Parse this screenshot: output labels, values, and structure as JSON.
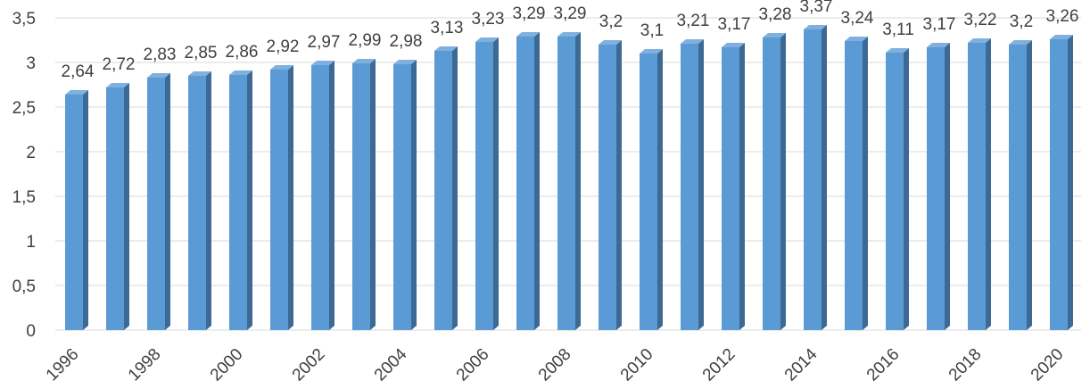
{
  "chart_data": {
    "type": "bar",
    "style": "3d-column",
    "title": "",
    "xlabel": "",
    "ylabel": "",
    "categories": [
      "1996",
      "1997",
      "1998",
      "1999",
      "2000",
      "2001",
      "2002",
      "2003",
      "2004",
      "2005",
      "2006",
      "2007",
      "2008",
      "2009",
      "2010",
      "2011",
      "2012",
      "2013",
      "2014",
      "2015",
      "2016",
      "2017",
      "2018",
      "2019",
      "2020"
    ],
    "values": [
      2.64,
      2.72,
      2.83,
      2.85,
      2.86,
      2.92,
      2.97,
      2.99,
      2.98,
      3.13,
      3.23,
      3.29,
      3.29,
      3.2,
      3.1,
      3.21,
      3.17,
      3.28,
      3.37,
      3.24,
      3.11,
      3.17,
      3.22,
      3.2,
      3.26
    ],
    "data_labels": [
      "2,64",
      "2,72",
      "2,83",
      "2,85",
      "2,86",
      "2,92",
      "2,97",
      "2,99",
      "2,98",
      "3,13",
      "3,23",
      "3,29",
      "3,29",
      "3,2",
      "3,1",
      "3,21",
      "3,17",
      "3,28",
      "3,37",
      "3,24",
      "3,11",
      "3,17",
      "3,22",
      "3,2",
      "3,26"
    ],
    "x_tick_labels": [
      "1996",
      "1998",
      "2000",
      "2002",
      "2004",
      "2006",
      "2008",
      "2010",
      "2012",
      "2014",
      "2016",
      "2018",
      "2020"
    ],
    "y_ticks": [
      0,
      0.5,
      1,
      1.5,
      2,
      2.5,
      3,
      3.5
    ],
    "y_tick_labels": [
      "0",
      "0,5",
      "1",
      "1,5",
      "2",
      "2,5",
      "3",
      "3,5"
    ],
    "ylim": [
      0,
      3.5
    ],
    "grid": true,
    "legend": "none",
    "colors": {
      "bar_front": "#5b9bd5",
      "bar_side": "#3c6a94",
      "bar_top": "#7fb0de",
      "grid": "#d9d9d9",
      "text": "#404040"
    }
  }
}
